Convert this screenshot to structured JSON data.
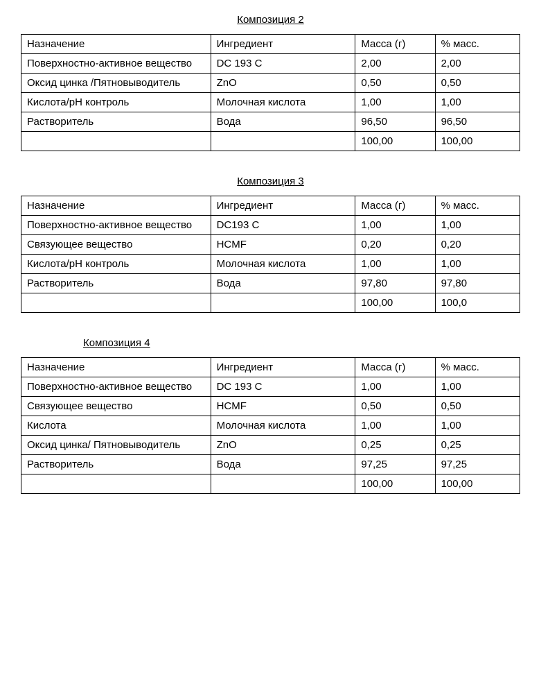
{
  "compositions": [
    {
      "title": "Композиция 2",
      "titleAlign": "center",
      "headers": {
        "purpose": "Назначение",
        "ingredient": "Ингредиент",
        "mass": "Масса (г)",
        "percent": "% масс."
      },
      "rows": [
        {
          "purpose": "Поверхностно-активное вещество",
          "ingredient": "DC 193 C",
          "mass": "2,00",
          "percent": "2,00"
        },
        {
          "purpose": "Оксид цинка /Пятновыводитель",
          "ingredient": "ZnO",
          "mass": "0,50",
          "percent": "0,50"
        },
        {
          "purpose": "Кислота/рН контроль",
          "ingredient": "Молочная кислота",
          "mass": "1,00",
          "percent": "1,00"
        },
        {
          "purpose": "Растворитель",
          "ingredient": "Вода",
          "mass": "96,50",
          "percent": "96,50"
        },
        {
          "purpose": "",
          "ingredient": "",
          "mass": "100,00",
          "percent": "100,00"
        }
      ]
    },
    {
      "title": "Композиция 3",
      "titleAlign": "center",
      "headers": {
        "purpose": "Назначение",
        "ingredient": "Ингредиент",
        "mass": "Масса (г)",
        "percent": "% масс."
      },
      "rows": [
        {
          "purpose": "Поверхностно-активное вещество",
          "ingredient": "DC193 C",
          "mass": "1,00",
          "percent": "1,00"
        },
        {
          "purpose": "Связующее вещество",
          "ingredient": "HCMF",
          "mass": "0,20",
          "percent": "0,20"
        },
        {
          "purpose": "Кислота/рН контроль",
          "ingredient": "Молочная кислота",
          "mass": "1,00",
          "percent": "1,00"
        },
        {
          "purpose": "Растворитель",
          "ingredient": "Вода",
          "mass": "97,80",
          "percent": "97,80"
        },
        {
          "purpose": "",
          "ingredient": "",
          "mass": "100,00",
          "percent": "100,0"
        }
      ]
    },
    {
      "title": "Композиция 4",
      "titleAlign": "left",
      "headers": {
        "purpose": "Назначение",
        "ingredient": "Ингредиент",
        "mass": "Масса (г)",
        "percent": "% масс."
      },
      "rows": [
        {
          "purpose": "Поверхностно-активное вещество",
          "ingredient": "DC 193 C",
          "mass": "1,00",
          "percent": "1,00"
        },
        {
          "purpose": "Связующее вещество",
          "ingredient": "HCMF",
          "mass": "0,50",
          "percent": "0,50"
        },
        {
          "purpose": "Кислота",
          "ingredient": "Молочная кислота",
          "mass": "1,00",
          "percent": "1,00"
        },
        {
          "purpose": "Оксид цинка/ Пятновыводитель",
          "ingredient": "ZnO",
          "mass": "0,25",
          "percent": "0,25"
        },
        {
          "purpose": "Растворитель",
          "ingredient": "Вода",
          "mass": "97,25",
          "percent": "97,25"
        },
        {
          "purpose": "",
          "ingredient": "",
          "mass": "100,00",
          "percent": "100,00"
        }
      ]
    }
  ]
}
